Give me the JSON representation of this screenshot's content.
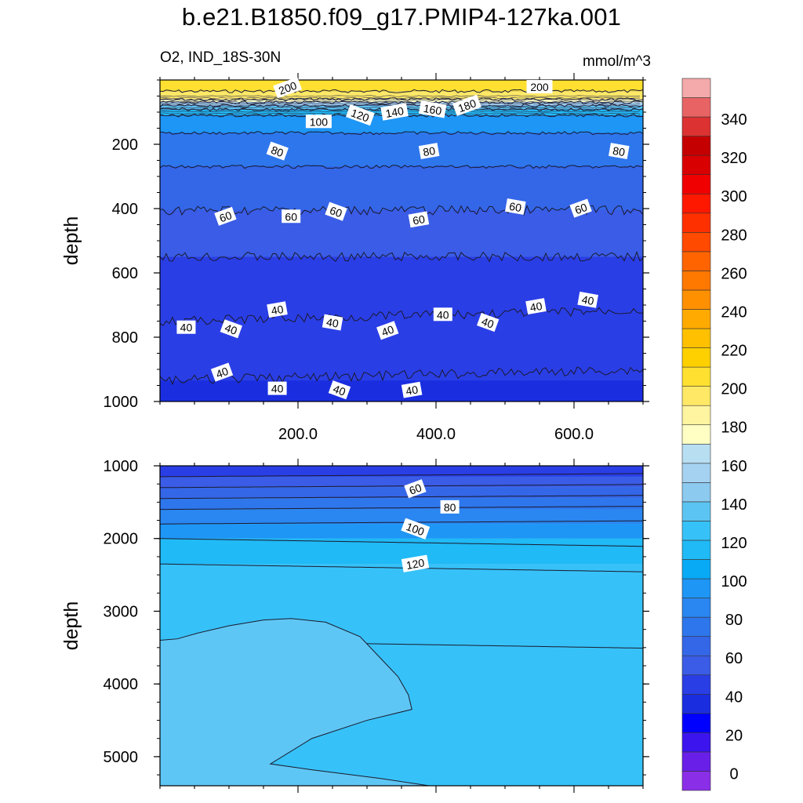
{
  "title": "b.e21.B1850.f09_g17.PMIP4-127ka.001",
  "subtitle_left": "O2, IND_18S-30N",
  "subtitle_right": "mmol/m^3",
  "colorbar": {
    "tick_labels": [
      "0",
      "20",
      "40",
      "60",
      "80",
      "100",
      "120",
      "140",
      "160",
      "180",
      "200",
      "220",
      "240",
      "260",
      "280",
      "300",
      "320",
      "340"
    ],
    "colors": [
      "#8a2ee8",
      "#6a1fe8",
      "#3c14ee",
      "#0000ff",
      "#1a2ee0",
      "#2a3ee6",
      "#3a5ce6",
      "#3466e8",
      "#2e76ec",
      "#2a86f0",
      "#1e96f6",
      "#08aaf6",
      "#20baf6",
      "#36c2f8",
      "#5cc4f2",
      "#8ccaf0",
      "#a6d2f2",
      "#b8def2",
      "#ffffc4",
      "#fff4a0",
      "#ffe866",
      "#ffe030",
      "#ffd000",
      "#ffc000",
      "#ffaa00",
      "#ff9000",
      "#ff7800",
      "#ff6400",
      "#ff4a00",
      "#ff3000",
      "#ff1800",
      "#f00000",
      "#d80000",
      "#c40000",
      "#dc3232",
      "#e86464",
      "#f4aaaa"
    ]
  },
  "chart_data": [
    {
      "type": "contour",
      "panel": "upper",
      "variable": "O2",
      "region": "IND_18S-30N",
      "units": "mmol/m^3",
      "ylabel": "depth",
      "ylim": [
        1000,
        0
      ],
      "yticks": [
        200,
        400,
        600,
        800,
        1000
      ],
      "xlim": [
        0,
        700
      ],
      "xtick_labels": [
        "200.0",
        "400.0",
        "600.0"
      ],
      "contour_levels": [
        {
          "value": 200,
          "depth": 35
        },
        {
          "value": 180,
          "depth": 60
        },
        {
          "value": 160,
          "depth": 70
        },
        {
          "value": 140,
          "depth": 80
        },
        {
          "value": 120,
          "depth": 92
        },
        {
          "value": 100,
          "depth": 110
        },
        {
          "value": 80,
          "depth": 165
        },
        {
          "value": 70,
          "depth": 270
        },
        {
          "value": 60,
          "depth": 405
        },
        {
          "value": 50,
          "depth": 550
        },
        {
          "value": 40,
          "depth": 750
        },
        {
          "value": 40,
          "depth": 935
        }
      ],
      "contour_labels": [
        {
          "text": "200",
          "x": 185,
          "depth": 25
        },
        {
          "text": "200",
          "x": 550,
          "depth": 22
        },
        {
          "text": "120",
          "x": 290,
          "depth": 110
        },
        {
          "text": "140",
          "x": 340,
          "depth": 100
        },
        {
          "text": "160",
          "x": 395,
          "depth": 92
        },
        {
          "text": "180",
          "x": 445,
          "depth": 80
        },
        {
          "text": "100",
          "x": 230,
          "depth": 130
        },
        {
          "text": "80",
          "x": 170,
          "depth": 222
        },
        {
          "text": "80",
          "x": 390,
          "depth": 222
        },
        {
          "text": "80",
          "x": 665,
          "depth": 222
        },
        {
          "text": "60",
          "x": 95,
          "depth": 425
        },
        {
          "text": "60",
          "x": 190,
          "depth": 425
        },
        {
          "text": "60",
          "x": 255,
          "depth": 410
        },
        {
          "text": "60",
          "x": 375,
          "depth": 435
        },
        {
          "text": "60",
          "x": 515,
          "depth": 395
        },
        {
          "text": "60",
          "x": 610,
          "depth": 400
        },
        {
          "text": "40",
          "x": 38,
          "depth": 770
        },
        {
          "text": "40",
          "x": 103,
          "depth": 775
        },
        {
          "text": "40",
          "x": 170,
          "depth": 715
        },
        {
          "text": "40",
          "x": 250,
          "depth": 755
        },
        {
          "text": "40",
          "x": 330,
          "depth": 780
        },
        {
          "text": "40",
          "x": 410,
          "depth": 730
        },
        {
          "text": "40",
          "x": 475,
          "depth": 755
        },
        {
          "text": "40",
          "x": 545,
          "depth": 705
        },
        {
          "text": "40",
          "x": 620,
          "depth": 685
        },
        {
          "text": "40",
          "x": 90,
          "depth": 910
        },
        {
          "text": "40",
          "x": 170,
          "depth": 960
        },
        {
          "text": "40",
          "x": 260,
          "depth": 965
        },
        {
          "text": "40",
          "x": 365,
          "depth": 965
        }
      ]
    },
    {
      "type": "contour",
      "panel": "lower",
      "ylabel": "depth",
      "ylim": [
        5400,
        1000
      ],
      "yticks": [
        1000,
        2000,
        3000,
        4000,
        5000
      ],
      "xlim": [
        0,
        700
      ],
      "contour_levels": [
        {
          "value": 50,
          "depth": 1150
        },
        {
          "value": 60,
          "depth": 1300
        },
        {
          "value": 70,
          "depth": 1450
        },
        {
          "value": 80,
          "depth": 1600
        },
        {
          "value": 90,
          "depth": 1800
        },
        {
          "value": 100,
          "depth": 2000
        },
        {
          "value": 120,
          "depth": 2350
        },
        {
          "value": 130,
          "depth": 3400
        }
      ],
      "contour_labels": [
        {
          "text": "60",
          "x": 370,
          "depth": 1320
        },
        {
          "text": "80",
          "x": 420,
          "depth": 1570
        },
        {
          "text": "100",
          "x": 370,
          "depth": 1870
        },
        {
          "text": "120",
          "x": 370,
          "depth": 2350
        }
      ]
    }
  ]
}
